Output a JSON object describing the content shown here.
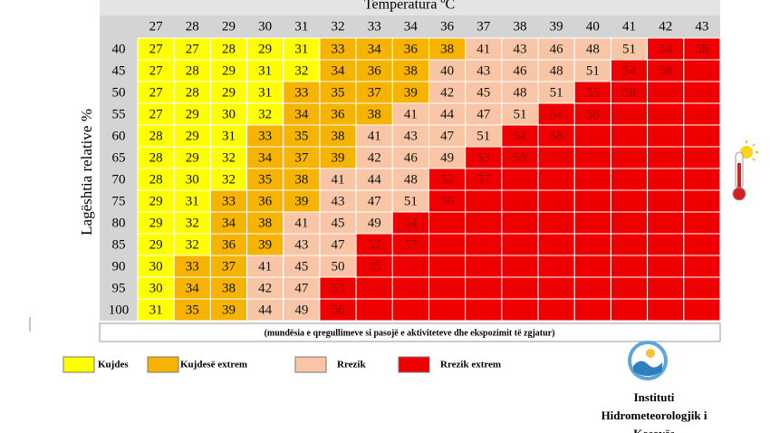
{
  "header": {
    "title": "Temperatura ºC",
    "y_label": "Lagështia relative %"
  },
  "table": {
    "columns": [
      27,
      28,
      29,
      30,
      31,
      32,
      33,
      34,
      36,
      37,
      38,
      39,
      40,
      41,
      42,
      43
    ],
    "empty_level": 3,
    "rows": [
      {
        "label": "40",
        "values": [
          27,
          27,
          28,
          29,
          31,
          33,
          34,
          36,
          38,
          41,
          43,
          46,
          48,
          51,
          54,
          58
        ],
        "levels": [
          0,
          0,
          0,
          0,
          0,
          1,
          1,
          1,
          1,
          2,
          2,
          2,
          2,
          2,
          3,
          3
        ]
      },
      {
        "label": "45",
        "values": [
          27,
          28,
          29,
          31,
          32,
          34,
          36,
          38,
          40,
          43,
          46,
          48,
          51,
          54,
          58
        ],
        "levels": [
          0,
          0,
          0,
          0,
          0,
          1,
          1,
          1,
          2,
          2,
          2,
          2,
          2,
          3,
          3
        ]
      },
      {
        "label": "50",
        "values": [
          27,
          28,
          29,
          31,
          33,
          35,
          37,
          39,
          42,
          45,
          48,
          51,
          55,
          58
        ],
        "levels": [
          0,
          0,
          0,
          0,
          1,
          1,
          1,
          1,
          2,
          2,
          2,
          2,
          3,
          3
        ]
      },
      {
        "label": "55",
        "values": [
          27,
          29,
          30,
          32,
          34,
          36,
          38,
          41,
          44,
          47,
          51,
          54,
          58
        ],
        "levels": [
          0,
          0,
          0,
          0,
          1,
          1,
          1,
          2,
          2,
          2,
          2,
          3,
          3
        ]
      },
      {
        "label": "60",
        "values": [
          28,
          29,
          31,
          33,
          35,
          38,
          41,
          43,
          47,
          51,
          54,
          58
        ],
        "levels": [
          0,
          0,
          0,
          1,
          1,
          1,
          2,
          2,
          2,
          2,
          3,
          3
        ]
      },
      {
        "label": "65",
        "values": [
          28,
          29,
          32,
          34,
          37,
          39,
          42,
          46,
          49,
          53,
          58
        ],
        "levels": [
          0,
          0,
          0,
          1,
          1,
          1,
          2,
          2,
          2,
          3,
          3
        ]
      },
      {
        "label": "70",
        "values": [
          28,
          30,
          32,
          35,
          38,
          41,
          44,
          48,
          52,
          57
        ],
        "levels": [
          0,
          0,
          0,
          1,
          1,
          2,
          2,
          2,
          3,
          3
        ]
      },
      {
        "label": "75",
        "values": [
          29,
          31,
          33,
          36,
          39,
          43,
          47,
          51,
          56
        ],
        "levels": [
          0,
          0,
          1,
          1,
          1,
          2,
          2,
          2,
          3
        ]
      },
      {
        "label": "80",
        "values": [
          29,
          32,
          34,
          38,
          41,
          45,
          49,
          54
        ],
        "levels": [
          0,
          0,
          1,
          1,
          2,
          2,
          2,
          3
        ]
      },
      {
        "label": "85",
        "values": [
          29,
          32,
          36,
          39,
          43,
          47,
          52,
          57
        ],
        "levels": [
          0,
          0,
          1,
          1,
          2,
          2,
          3,
          3
        ]
      },
      {
        "label": "90",
        "values": [
          30,
          33,
          37,
          41,
          45,
          50,
          55
        ],
        "levels": [
          0,
          1,
          1,
          2,
          2,
          2,
          3
        ]
      },
      {
        "label": "95",
        "values": [
          30,
          34,
          38,
          42,
          47,
          53
        ],
        "levels": [
          0,
          1,
          1,
          2,
          2,
          3
        ]
      },
      {
        "label": "100",
        "values": [
          31,
          35,
          39,
          44,
          49,
          56
        ],
        "levels": [
          0,
          1,
          1,
          2,
          2,
          3
        ]
      }
    ]
  },
  "note": "(mundësia e qregullimeve si pasojë e aktiviteteve dhe ekspozimit të zgjatur)",
  "legend": [
    {
      "label": "Kujdes",
      "color": "#ffff00"
    },
    {
      "label": "Kujdesë extrem",
      "color": "#f6b400"
    },
    {
      "label": "Rrezik",
      "color": "#f8c6a6"
    },
    {
      "label": "Rrezik extrem",
      "color": "#ee0000"
    }
  ],
  "logo": {
    "lines": [
      "Instituti",
      "Hidrometeorologjik i",
      "Kosovës"
    ]
  }
}
